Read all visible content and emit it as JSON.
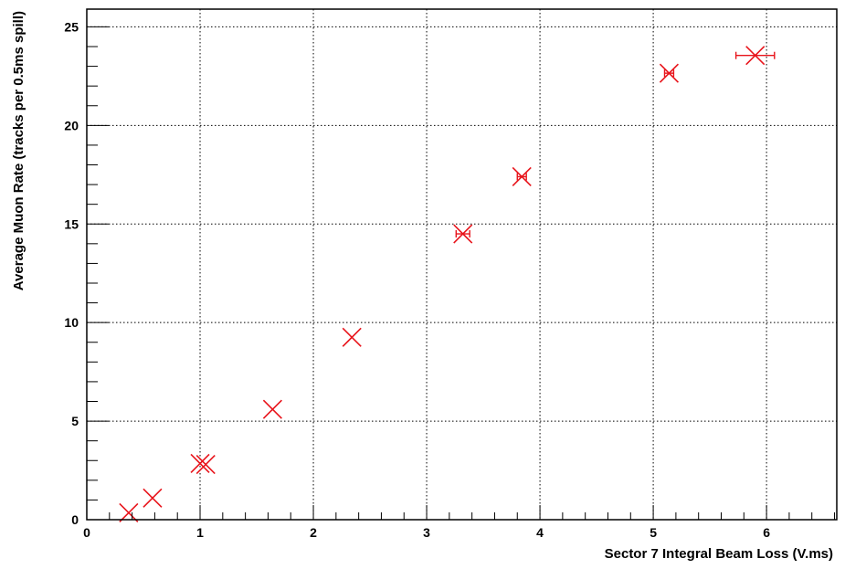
{
  "chart_data": {
    "type": "scatter",
    "title": "",
    "xlabel": "Sector 7 Integral Beam Loss (V.ms)",
    "ylabel": "Average Muon Rate (tracks per 0.5ms spill)",
    "xlim": [
      0,
      6.62
    ],
    "ylim": [
      0,
      25.9
    ],
    "xticks": [
      0,
      1,
      2,
      3,
      4,
      5,
      6
    ],
    "yticks": [
      0,
      5,
      10,
      15,
      20,
      25
    ],
    "grid": true,
    "grid_style": "dotted",
    "marker": "x",
    "color": "#e8141b",
    "series": [
      {
        "points": [
          {
            "x": 0.37,
            "y": 0.35,
            "xerr": 0.0
          },
          {
            "x": 0.58,
            "y": 1.1,
            "xerr": 0.0
          },
          {
            "x": 1.0,
            "y": 2.85,
            "xerr": 0.0
          },
          {
            "x": 1.05,
            "y": 2.8,
            "xerr": 0.0
          },
          {
            "x": 1.64,
            "y": 5.6,
            "xerr": 0.0
          },
          {
            "x": 2.34,
            "y": 9.25,
            "xerr": 0.0
          },
          {
            "x": 3.32,
            "y": 14.5,
            "xerr": 0.06
          },
          {
            "x": 3.84,
            "y": 17.4,
            "xerr": 0.04
          },
          {
            "x": 5.14,
            "y": 22.65,
            "xerr": 0.04
          },
          {
            "x": 5.9,
            "y": 23.55,
            "xerr": 0.17
          }
        ]
      }
    ]
  }
}
